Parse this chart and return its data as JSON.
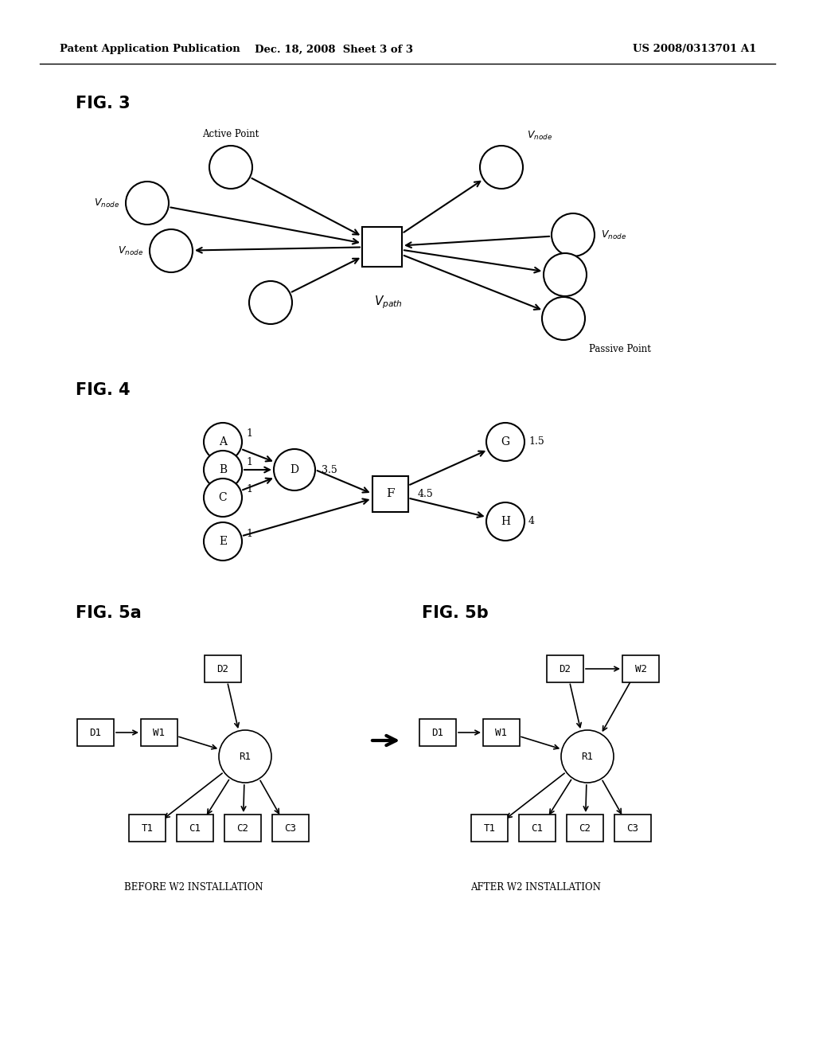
{
  "bg_color": "#ffffff",
  "header_left": "Patent Application Publication",
  "header_mid": "Dec. 18, 2008  Sheet 3 of 3",
  "header_right": "US 2008/0313701 A1",
  "fig3_label": "FIG. 3",
  "fig4_label": "FIG. 4",
  "fig5a_label": "FIG. 5a",
  "fig5b_label": "FIG. 5b",
  "fig5a_caption": "BEFORE W2 INSTALLATION",
  "fig5b_caption": "AFTER W2 INSTALLATION"
}
